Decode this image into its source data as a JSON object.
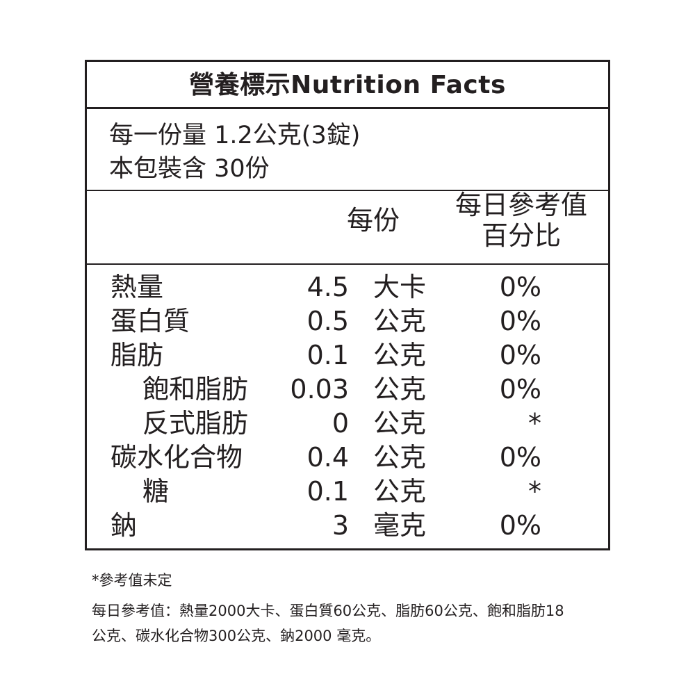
{
  "label": {
    "title": "營養標示Nutrition Facts",
    "serving_size": "每一份量 1.2公克(3錠)",
    "servings_per_package": "本包裝含 30份",
    "col_per_serving": "每份",
    "col_daily_value_line1": "每日參考值",
    "col_daily_value_line2": "百分比",
    "rows": [
      {
        "name": "熱量",
        "indent": 0,
        "value": "4.5",
        "unit": "大卡",
        "percent": "0%"
      },
      {
        "name": "蛋白質",
        "indent": 0,
        "value": "0.5",
        "unit": "公克",
        "percent": "0%"
      },
      {
        "name": "脂肪",
        "indent": 0,
        "value": "0.1",
        "unit": "公克",
        "percent": "0%"
      },
      {
        "name": "飽和脂肪",
        "indent": 1,
        "value": "0.03",
        "unit": "公克",
        "percent": "0%"
      },
      {
        "name": "反式脂肪",
        "indent": 1,
        "value": "0",
        "unit": "公克",
        "percent": "*"
      },
      {
        "name": "碳水化合物",
        "indent": 0,
        "value": "0.4",
        "unit": "公克",
        "percent": "0%"
      },
      {
        "name": "糖",
        "indent": 1,
        "value": "0.1",
        "unit": "公克",
        "percent": "*"
      },
      {
        "name": "鈉",
        "indent": 0,
        "value": "3",
        "unit": "毫克",
        "percent": "0%"
      }
    ]
  },
  "notes": {
    "undetermined": "*參考值未定",
    "daily_reference_line1": "每日參考值：熱量2000大卡、蛋白質60公克、脂肪60公克、飽和脂肪18",
    "daily_reference_line2": "公克、碳水化合物300公克、鈉2000 毫克。"
  }
}
